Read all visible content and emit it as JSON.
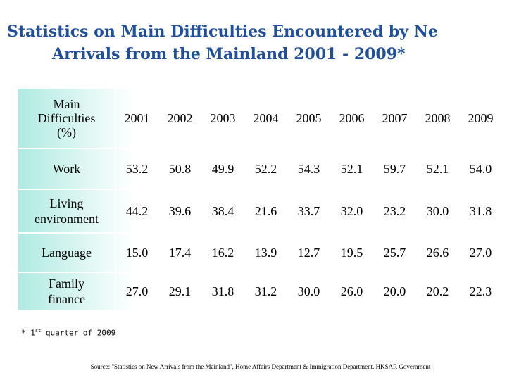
{
  "title": {
    "line1": "Statistics on Main Difficulties Encountered by Ne",
    "line2": "Arrivals from the Mainland 2001 - 2009*"
  },
  "table": {
    "header_label_lines": [
      "Main",
      "Difficulties",
      "(%)"
    ],
    "years": [
      "2001",
      "2002",
      "2003",
      "2004",
      "2005",
      "2006",
      "2007",
      "2008",
      "2009"
    ],
    "rows": [
      {
        "label_lines": [
          "Work"
        ],
        "values": [
          "53.2",
          "50.8",
          "49.9",
          "52.2",
          "54.3",
          "52.1",
          "59.7",
          "52.1",
          "54.0"
        ]
      },
      {
        "label_lines": [
          "Living",
          "environment"
        ],
        "values": [
          "44.2",
          "39.6",
          "38.4",
          "21.6",
          "33.7",
          "32.0",
          "23.2",
          "30.0",
          "31.8"
        ]
      },
      {
        "label_lines": [
          "Language"
        ],
        "values": [
          "15.0",
          "17.4",
          "16.2",
          "13.9",
          "12.7",
          "19.5",
          "25.7",
          "26.6",
          "27.0"
        ]
      },
      {
        "label_lines": [
          "Family",
          "finance"
        ],
        "values": [
          "27.0",
          "29.1",
          "31.8",
          "31.2",
          "30.0",
          "26.0",
          "20.0",
          "20.2",
          "22.3"
        ]
      }
    ]
  },
  "footnote": {
    "prefix": "* 1",
    "sup": "st",
    "suffix": " quarter of 2009"
  },
  "source": "Source: \"Statistics on New Arrivals from the Mainland\", Home Affairs Department & Immigration Department, HKSAR Government",
  "colors": {
    "title": "#1f4f9a",
    "panel_tint": "#a0e6dc"
  }
}
